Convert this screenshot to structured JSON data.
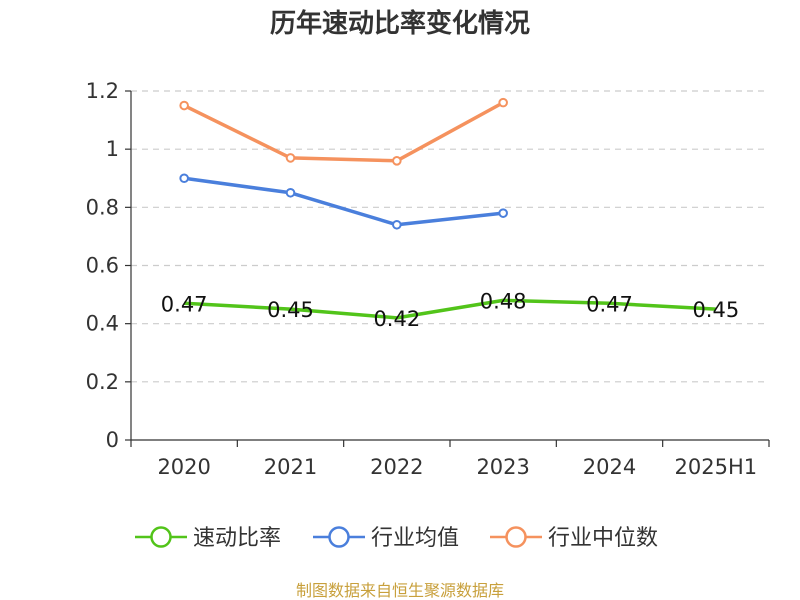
{
  "chart_data": {
    "type": "line",
    "title": "历年速动比率变化情况",
    "xlabel": "",
    "ylabel": "",
    "categories": [
      "2020",
      "2021",
      "2022",
      "2023",
      "2024",
      "2025H1"
    ],
    "ylim": [
      0,
      1.2
    ],
    "yticks": [
      "0",
      "0.2",
      "0.4",
      "0.6",
      "0.8",
      "1",
      "1.2"
    ],
    "grid": true,
    "legend_position": "bottom",
    "series": [
      {
        "name": "速动比率",
        "color": "#52c41a",
        "values": [
          0.47,
          0.45,
          0.42,
          0.48,
          0.47,
          0.45
        ],
        "labels": [
          "0.47",
          "0.45",
          "0.42",
          "0.48",
          "0.47",
          "0.45"
        ],
        "markers": false
      },
      {
        "name": "行业均值",
        "color": "#4a7fdc",
        "values": [
          0.9,
          0.85,
          0.74,
          0.78,
          null,
          null
        ],
        "markers": true
      },
      {
        "name": "行业中位数",
        "color": "#f5925e",
        "values": [
          1.15,
          0.97,
          0.96,
          1.16,
          null,
          null
        ],
        "markers": true
      }
    ]
  },
  "source": "制图数据来自恒生聚源数据库"
}
